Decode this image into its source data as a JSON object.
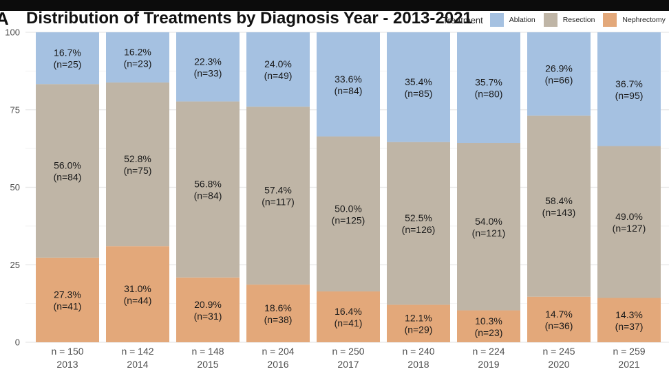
{
  "panel_letter": "A",
  "chart_data": {
    "type": "bar",
    "stacked": true,
    "title": "Distribution of Treatments by Diagnosis Year - 2013-2021",
    "xlabel": "",
    "ylabel": "",
    "ylim": [
      0,
      100
    ],
    "yticks": [
      0,
      25,
      50,
      75,
      100
    ],
    "grid": true,
    "legend": {
      "title": "Treatment",
      "placement": "top-right",
      "entries": [
        "Ablation",
        "Resection",
        "Nephrectomy"
      ]
    },
    "categories": [
      "2013",
      "2014",
      "2015",
      "2016",
      "2017",
      "2018",
      "2019",
      "2020",
      "2021"
    ],
    "category_totals": [
      "n = 150",
      "n = 142",
      "n = 148",
      "n = 204",
      "n = 250",
      "n = 240",
      "n = 224",
      "n = 245",
      "n = 259"
    ],
    "series": [
      {
        "name": "Nephrectomy",
        "color": "#e3a87a",
        "values": [
          27.3,
          31.0,
          20.9,
          18.6,
          16.4,
          12.1,
          10.3,
          14.7,
          14.3
        ],
        "counts": [
          41,
          44,
          31,
          38,
          41,
          29,
          23,
          36,
          37
        ],
        "labels": [
          "27.3%",
          "31.0%",
          "20.9%",
          "18.6%",
          "16.4%",
          "12.1%",
          "10.3%",
          "14.7%",
          "14.3%"
        ],
        "count_labels": [
          "(n=41)",
          "(n=44)",
          "(n=31)",
          "(n=38)",
          "(n=41)",
          "(n=29)",
          "(n=23)",
          "(n=36)",
          "(n=37)"
        ]
      },
      {
        "name": "Resection",
        "color": "#bfb5a6",
        "values": [
          56.0,
          52.8,
          56.8,
          57.4,
          50.0,
          52.5,
          54.0,
          58.4,
          49.0
        ],
        "counts": [
          84,
          75,
          84,
          117,
          125,
          126,
          121,
          143,
          127
        ],
        "labels": [
          "56.0%",
          "52.8%",
          "56.8%",
          "57.4%",
          "50.0%",
          "52.5%",
          "54.0%",
          "58.4%",
          "49.0%"
        ],
        "count_labels": [
          "(n=84)",
          "(n=75)",
          "(n=84)",
          "(n=117)",
          "(n=125)",
          "(n=126)",
          "(n=121)",
          "(n=143)",
          "(n=127)"
        ]
      },
      {
        "name": "Ablation",
        "color": "#a5c1e1",
        "values": [
          16.7,
          16.2,
          22.3,
          24.0,
          33.6,
          35.4,
          35.7,
          26.9,
          36.7
        ],
        "counts": [
          25,
          23,
          33,
          49,
          84,
          85,
          80,
          66,
          95
        ],
        "labels": [
          "16.7%",
          "16.2%",
          "22.3%",
          "24.0%",
          "33.6%",
          "35.4%",
          "35.7%",
          "26.9%",
          "36.7%"
        ],
        "count_labels": [
          "(n=25)",
          "(n=23)",
          "(n=33)",
          "(n=49)",
          "(n=84)",
          "(n=85)",
          "(n=80)",
          "(n=66)",
          "(n=95)"
        ]
      }
    ]
  }
}
